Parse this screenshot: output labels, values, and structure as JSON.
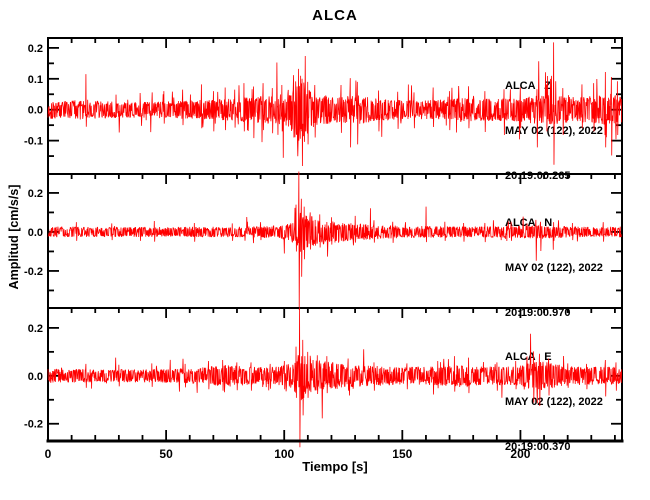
{
  "chart_data": {
    "type": "line",
    "subtype": "seismogram-3-component",
    "title": "ALCA",
    "xlabel": "Tiempo [s]",
    "ylabel": "Amplitud [cm/s/s]",
    "xlim": [
      0,
      243
    ],
    "x_major_ticks": [
      0,
      50,
      100,
      150,
      200
    ],
    "x_minor_step": 10,
    "grid": false,
    "legend": "none",
    "trace_color": "#ff0000",
    "frame_color": "#000000",
    "background_color": "#ffffff",
    "panels": [
      {
        "name": "ALCA Z",
        "component": "Z",
        "annotation": [
          "ALCA   Z",
          "MAY 02 (122), 2022",
          "20:19:00.265"
        ],
        "ylim": [
          -0.208,
          0.232
        ],
        "y_major_ticks": [
          0.2,
          0.1,
          0.0,
          -0.1
        ],
        "y_tick_labels": [
          "0.2",
          "0.1",
          "0.0",
          "-0.1"
        ],
        "y_minor_step": 0.05,
        "seed": 101,
        "texture": {
          "hair_prob": 0.05,
          "hair_gain": 2.4
        },
        "envelope": [
          [
            0,
            0.03
          ],
          [
            8,
            0.028
          ],
          [
            14,
            0.032
          ],
          [
            20,
            0.029
          ],
          [
            30,
            0.026
          ],
          [
            42,
            0.026
          ],
          [
            52,
            0.028
          ],
          [
            60,
            0.031
          ],
          [
            68,
            0.032
          ],
          [
            76,
            0.035
          ],
          [
            84,
            0.04
          ],
          [
            90,
            0.045
          ],
          [
            96,
            0.046
          ],
          [
            100,
            0.052
          ],
          [
            103,
            0.075
          ],
          [
            105,
            0.1
          ],
          [
            107,
            0.115
          ],
          [
            109,
            0.088
          ],
          [
            112,
            0.062
          ],
          [
            116,
            0.05
          ],
          [
            121,
            0.043
          ],
          [
            127,
            0.047
          ],
          [
            131,
            0.048
          ],
          [
            137,
            0.04
          ],
          [
            145,
            0.034
          ],
          [
            153,
            0.031
          ],
          [
            161,
            0.031
          ],
          [
            169,
            0.034
          ],
          [
            177,
            0.038
          ],
          [
            184,
            0.036
          ],
          [
            191,
            0.037
          ],
          [
            198,
            0.039
          ],
          [
            205,
            0.044
          ],
          [
            210,
            0.049
          ],
          [
            215,
            0.047
          ],
          [
            221,
            0.041
          ],
          [
            227,
            0.042
          ],
          [
            233,
            0.046
          ],
          [
            238,
            0.05
          ],
          [
            243,
            0.043
          ]
        ],
        "spikes": [
          [
            16,
            0.115,
            -0.055
          ],
          [
            49,
            0.06,
            -0.045
          ],
          [
            57,
            0.065,
            -0.05
          ],
          [
            65,
            0.082,
            -0.06
          ],
          [
            70,
            0.06,
            -0.07
          ],
          [
            75,
            0.072,
            -0.066
          ],
          [
            79,
            0.065,
            -0.058
          ],
          [
            83,
            0.086,
            -0.07
          ],
          [
            87,
            0.075,
            -0.092
          ],
          [
            91,
            0.086,
            -0.066
          ],
          [
            95,
            0.07,
            -0.076
          ],
          [
            99,
            0.08,
            -0.07
          ],
          [
            104,
            0.112,
            -0.09
          ],
          [
            106,
            0.132,
            -0.1
          ],
          [
            107.5,
            0.1,
            -0.182
          ],
          [
            110,
            0.09,
            -0.112
          ],
          [
            113,
            0.08,
            -0.09
          ],
          [
            124,
            0.08,
            -0.075
          ],
          [
            128,
            0.102,
            -0.122
          ],
          [
            131,
            0.09,
            -0.112
          ],
          [
            140,
            0.062,
            -0.07
          ],
          [
            148,
            0.058,
            -0.062
          ],
          [
            155,
            0.056,
            -0.06
          ],
          [
            163,
            0.072,
            -0.056
          ],
          [
            170,
            0.06,
            -0.066
          ],
          [
            178,
            0.076,
            -0.06
          ],
          [
            185,
            0.06,
            -0.072
          ],
          [
            193,
            0.066,
            -0.082
          ],
          [
            200,
            0.072,
            -0.06
          ],
          [
            207,
            0.066,
            -0.122
          ],
          [
            211,
            0.082,
            -0.07
          ],
          [
            214,
            0.218,
            -0.178
          ],
          [
            218,
            0.07,
            -0.082
          ],
          [
            226,
            0.082,
            -0.06
          ],
          [
            231,
            0.086,
            -0.07
          ],
          [
            236,
            0.122,
            -0.122
          ],
          [
            238.5,
            0.106,
            -0.148
          ],
          [
            241,
            0.092,
            -0.082
          ]
        ]
      },
      {
        "name": "ALCA N",
        "component": "N",
        "annotation": [
          "ALCA   N",
          "MAY 02 (122), 2022",
          "20:19:00.970"
        ],
        "ylim": [
          -0.39,
          0.297
        ],
        "y_major_ticks": [
          0.2,
          0.0,
          -0.2
        ],
        "y_tick_labels": [
          "0.2",
          "0.0",
          "-0.2"
        ],
        "y_minor_step": 0.1,
        "seed": 202,
        "texture": {
          "hair_prob": 0.022,
          "hair_gain": 1.9
        },
        "envelope": [
          [
            0,
            0.028
          ],
          [
            12,
            0.026
          ],
          [
            24,
            0.025
          ],
          [
            36,
            0.026
          ],
          [
            48,
            0.025
          ],
          [
            60,
            0.026
          ],
          [
            72,
            0.027
          ],
          [
            84,
            0.028
          ],
          [
            92,
            0.03
          ],
          [
            98,
            0.034
          ],
          [
            102,
            0.044
          ],
          [
            104.5,
            0.062
          ],
          [
            106,
            0.1
          ],
          [
            107.5,
            0.12
          ],
          [
            109,
            0.098
          ],
          [
            111,
            0.086
          ],
          [
            114,
            0.072
          ],
          [
            118,
            0.06
          ],
          [
            123,
            0.052
          ],
          [
            129,
            0.045
          ],
          [
            136,
            0.039
          ],
          [
            144,
            0.034
          ],
          [
            152,
            0.032
          ],
          [
            162,
            0.03
          ],
          [
            172,
            0.028
          ],
          [
            182,
            0.028
          ],
          [
            192,
            0.029
          ],
          [
            200,
            0.031
          ],
          [
            205,
            0.035
          ],
          [
            208,
            0.038
          ],
          [
            213,
            0.033
          ],
          [
            220,
            0.028
          ],
          [
            230,
            0.026
          ],
          [
            243,
            0.027
          ]
        ],
        "spikes": [
          [
            12,
            0.05,
            -0.046
          ],
          [
            27,
            0.044,
            -0.042
          ],
          [
            45,
            0.056,
            -0.05
          ],
          [
            62,
            0.046,
            -0.05
          ],
          [
            78,
            0.044,
            -0.046
          ],
          [
            90,
            0.05,
            -0.042
          ],
          [
            105,
            0.14,
            -0.1
          ],
          [
            106.2,
            0.31,
            -0.4
          ],
          [
            107.2,
            0.17,
            -0.23
          ],
          [
            108.5,
            0.13,
            -0.14
          ],
          [
            111,
            0.1,
            -0.09
          ],
          [
            115,
            0.09,
            -0.08
          ],
          [
            120,
            0.075,
            -0.065
          ],
          [
            130,
            0.082,
            -0.055
          ],
          [
            138,
            0.06,
            -0.055
          ],
          [
            146,
            0.052,
            -0.056
          ],
          [
            160,
            0.13,
            -0.052
          ],
          [
            168,
            0.052,
            -0.046
          ],
          [
            176,
            0.046,
            -0.05
          ],
          [
            185,
            0.046,
            -0.052
          ],
          [
            196,
            0.052,
            -0.046
          ],
          [
            206.5,
            0.062,
            -0.148
          ],
          [
            208.5,
            0.052,
            -0.098
          ],
          [
            214,
            0.05,
            -0.046
          ],
          [
            222,
            0.046,
            -0.042
          ],
          [
            235,
            0.05,
            -0.05
          ]
        ]
      },
      {
        "name": "ALCA E",
        "component": "E",
        "annotation": [
          "ALCA   E",
          "MAY 02 (122), 2022",
          "20:19:00.370"
        ],
        "ylim": [
          -0.272,
          0.283
        ],
        "y_major_ticks": [
          0.2,
          0.0,
          -0.2
        ],
        "y_tick_labels": [
          "0.2",
          "0.0",
          "-0.2"
        ],
        "y_minor_step": 0.1,
        "seed": 303,
        "texture": {
          "hair_prob": 0.028,
          "hair_gain": 1.9
        },
        "envelope": [
          [
            0,
            0.03
          ],
          [
            12,
            0.028
          ],
          [
            24,
            0.026
          ],
          [
            36,
            0.027
          ],
          [
            48,
            0.028
          ],
          [
            58,
            0.03
          ],
          [
            66,
            0.036
          ],
          [
            72,
            0.044
          ],
          [
            76,
            0.047
          ],
          [
            80,
            0.042
          ],
          [
            86,
            0.038
          ],
          [
            93,
            0.036
          ],
          [
            99,
            0.042
          ],
          [
            103,
            0.052
          ],
          [
            105.5,
            0.08
          ],
          [
            107,
            0.105
          ],
          [
            109,
            0.086
          ],
          [
            112,
            0.07
          ],
          [
            116,
            0.062
          ],
          [
            121,
            0.056
          ],
          [
            127,
            0.049
          ],
          [
            133,
            0.045
          ],
          [
            141,
            0.041
          ],
          [
            149,
            0.038
          ],
          [
            156,
            0.037
          ],
          [
            163,
            0.039
          ],
          [
            169,
            0.043
          ],
          [
            175,
            0.044
          ],
          [
            181,
            0.041
          ],
          [
            189,
            0.038
          ],
          [
            196,
            0.041
          ],
          [
            201,
            0.046
          ],
          [
            205,
            0.058
          ],
          [
            208,
            0.064
          ],
          [
            211,
            0.059
          ],
          [
            216,
            0.048
          ],
          [
            222,
            0.041
          ],
          [
            229,
            0.037
          ],
          [
            236,
            0.039
          ],
          [
            243,
            0.037
          ]
        ],
        "spikes": [
          [
            16,
            0.05,
            -0.05
          ],
          [
            30,
            0.046,
            -0.044
          ],
          [
            44,
            0.052,
            -0.046
          ],
          [
            58,
            0.05,
            -0.048
          ],
          [
            68,
            0.062,
            -0.056
          ],
          [
            74,
            0.066,
            -0.062
          ],
          [
            80,
            0.056,
            -0.06
          ],
          [
            86,
            0.056,
            -0.062
          ],
          [
            94,
            0.05,
            -0.054
          ],
          [
            100,
            0.062,
            -0.056
          ],
          [
            105,
            0.122,
            -0.092
          ],
          [
            106.5,
            0.286,
            -0.298
          ],
          [
            107.8,
            0.15,
            -0.165
          ],
          [
            110,
            0.1,
            -0.092
          ],
          [
            114,
            0.086,
            -0.076
          ],
          [
            118,
            0.082,
            -0.072
          ],
          [
            127,
            0.072,
            -0.062
          ],
          [
            138,
            0.056,
            -0.062
          ],
          [
            152,
            0.052,
            -0.056
          ],
          [
            165,
            0.062,
            -0.052
          ],
          [
            172,
            0.082,
            -0.066
          ],
          [
            178,
            0.076,
            -0.072
          ],
          [
            190,
            0.056,
            -0.062
          ],
          [
            198,
            0.062,
            -0.056
          ],
          [
            205.5,
            0.102,
            -0.112
          ],
          [
            208,
            0.092,
            -0.126
          ],
          [
            212,
            0.072,
            -0.082
          ],
          [
            220,
            0.052,
            -0.05
          ],
          [
            228,
            0.05,
            -0.056
          ],
          [
            236,
            0.066,
            -0.086
          ],
          [
            240.5,
            0.056,
            -0.062
          ]
        ]
      }
    ]
  }
}
